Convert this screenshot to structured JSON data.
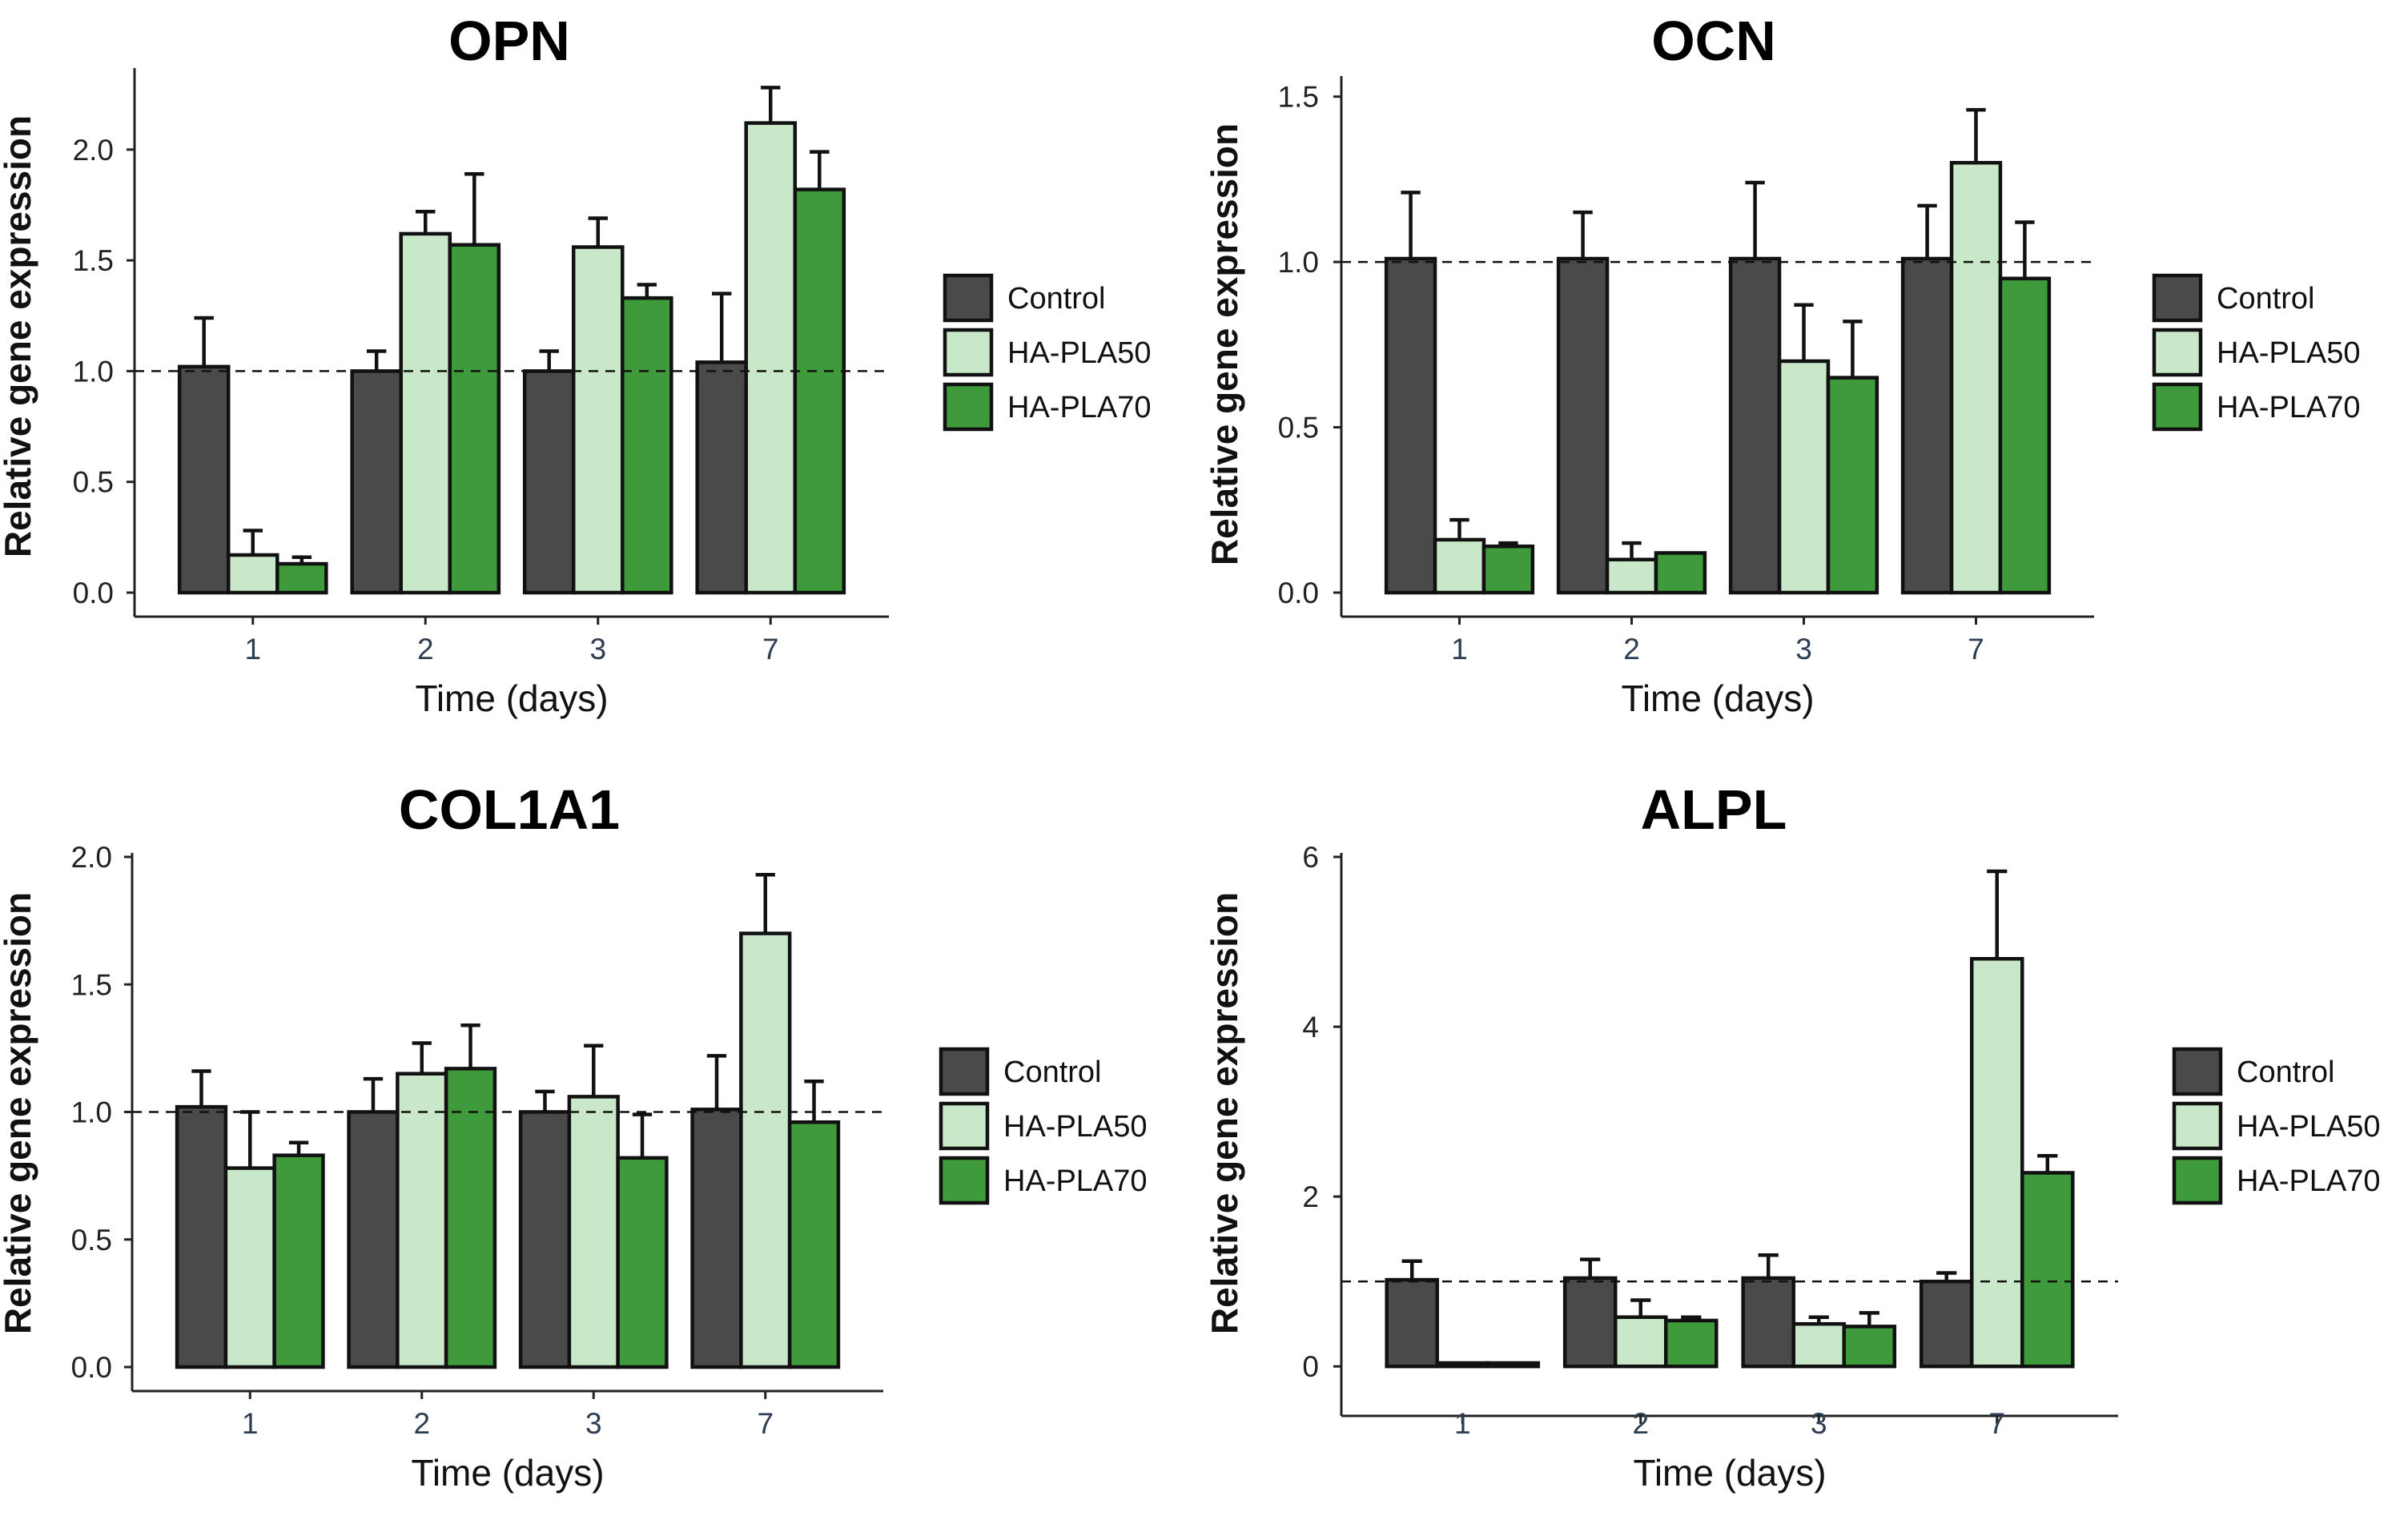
{
  "figure": {
    "legend_labels": [
      "Control",
      "HA-PLA50",
      "HA-PLA70"
    ],
    "legend_colors": [
      "#4a4a4a",
      "#c9e7c9",
      "#3e9a3a"
    ]
  },
  "chart_data": [
    {
      "type": "bar",
      "title": "OPN",
      "xlabel": "Time (days)",
      "ylabel": "Relative gene expression",
      "categories": [
        "1",
        "2",
        "3",
        "7"
      ],
      "ylim": [
        0,
        2.35
      ],
      "yticks": [
        "0.0",
        "0.5",
        "1.0",
        "1.5",
        "2.0"
      ],
      "ytick_values": [
        0,
        0.5,
        1.0,
        1.5,
        2.0
      ],
      "reference_line": 1.0,
      "series": [
        {
          "name": "Control",
          "values": [
            1.02,
            1.0,
            1.0,
            1.04
          ],
          "errors": [
            0.22,
            0.09,
            0.09,
            0.31
          ]
        },
        {
          "name": "HA-PLA50",
          "values": [
            0.17,
            1.62,
            1.56,
            2.12
          ],
          "errors": [
            0.11,
            0.1,
            0.13,
            0.16
          ]
        },
        {
          "name": "HA-PLA70",
          "values": [
            0.13,
            1.57,
            1.33,
            1.82
          ],
          "errors": [
            0.03,
            0.32,
            0.06,
            0.17
          ]
        }
      ]
    },
    {
      "type": "bar",
      "title": "OCN",
      "xlabel": "Time (days)",
      "ylabel": "Relative gene expression",
      "categories": [
        "1",
        "2",
        "3",
        "7"
      ],
      "ylim": [
        0,
        1.55
      ],
      "yticks": [
        "0.0",
        "0.5",
        "1.0",
        "1.5"
      ],
      "ytick_values": [
        0,
        0.5,
        1.0,
        1.5
      ],
      "reference_line": 1.0,
      "series": [
        {
          "name": "Control",
          "values": [
            1.01,
            1.01,
            1.01,
            1.01
          ],
          "errors": [
            0.2,
            0.14,
            0.23,
            0.16
          ]
        },
        {
          "name": "HA-PLA50",
          "values": [
            0.16,
            0.1,
            0.7,
            1.3
          ],
          "errors": [
            0.06,
            0.05,
            0.17,
            0.16
          ]
        },
        {
          "name": "HA-PLA70",
          "values": [
            0.14,
            0.12,
            0.65,
            0.95
          ],
          "errors": [
            0.01,
            0.0,
            0.17,
            0.17
          ]
        }
      ]
    },
    {
      "type": "bar",
      "title": "COL1A1",
      "xlabel": "Time (days)",
      "ylabel": "Relative gene expression",
      "categories": [
        "1",
        "2",
        "3",
        "7"
      ],
      "ylim": [
        0,
        2.0
      ],
      "yticks": [
        "0.0",
        "0.5",
        "1.0",
        "1.5",
        "2.0"
      ],
      "ytick_values": [
        0,
        0.5,
        1.0,
        1.5,
        2.0
      ],
      "reference_line": 1.0,
      "series": [
        {
          "name": "Control",
          "values": [
            1.02,
            1.0,
            1.0,
            1.01
          ],
          "errors": [
            0.14,
            0.13,
            0.08,
            0.21
          ]
        },
        {
          "name": "HA-PLA50",
          "values": [
            0.78,
            1.15,
            1.06,
            1.7
          ],
          "errors": [
            0.22,
            0.12,
            0.2,
            0.23
          ]
        },
        {
          "name": "HA-PLA70",
          "values": [
            0.83,
            1.17,
            0.82,
            0.96
          ],
          "errors": [
            0.05,
            0.17,
            0.17,
            0.16
          ]
        }
      ]
    },
    {
      "type": "bar",
      "title": "ALPL",
      "xlabel": "Time (days)",
      "ylabel": "Relative gene expression",
      "categories": [
        "1",
        "2",
        "3",
        "7"
      ],
      "ylim": [
        -0.3,
        6.0
      ],
      "yticks": [
        "0",
        "2",
        "4",
        "6"
      ],
      "ytick_values": [
        0,
        2,
        4,
        6
      ],
      "reference_line": 1.0,
      "series": [
        {
          "name": "Control",
          "values": [
            1.02,
            1.04,
            1.04,
            1.0
          ],
          "errors": [
            0.22,
            0.22,
            0.27,
            0.1
          ]
        },
        {
          "name": "HA-PLA50",
          "values": [
            0.04,
            0.58,
            0.5,
            4.8
          ],
          "errors": [
            0.0,
            0.2,
            0.08,
            1.03
          ]
        },
        {
          "name": "HA-PLA70",
          "values": [
            0.04,
            0.54,
            0.47,
            2.28
          ],
          "errors": [
            0.0,
            0.04,
            0.16,
            0.2
          ]
        }
      ]
    }
  ]
}
